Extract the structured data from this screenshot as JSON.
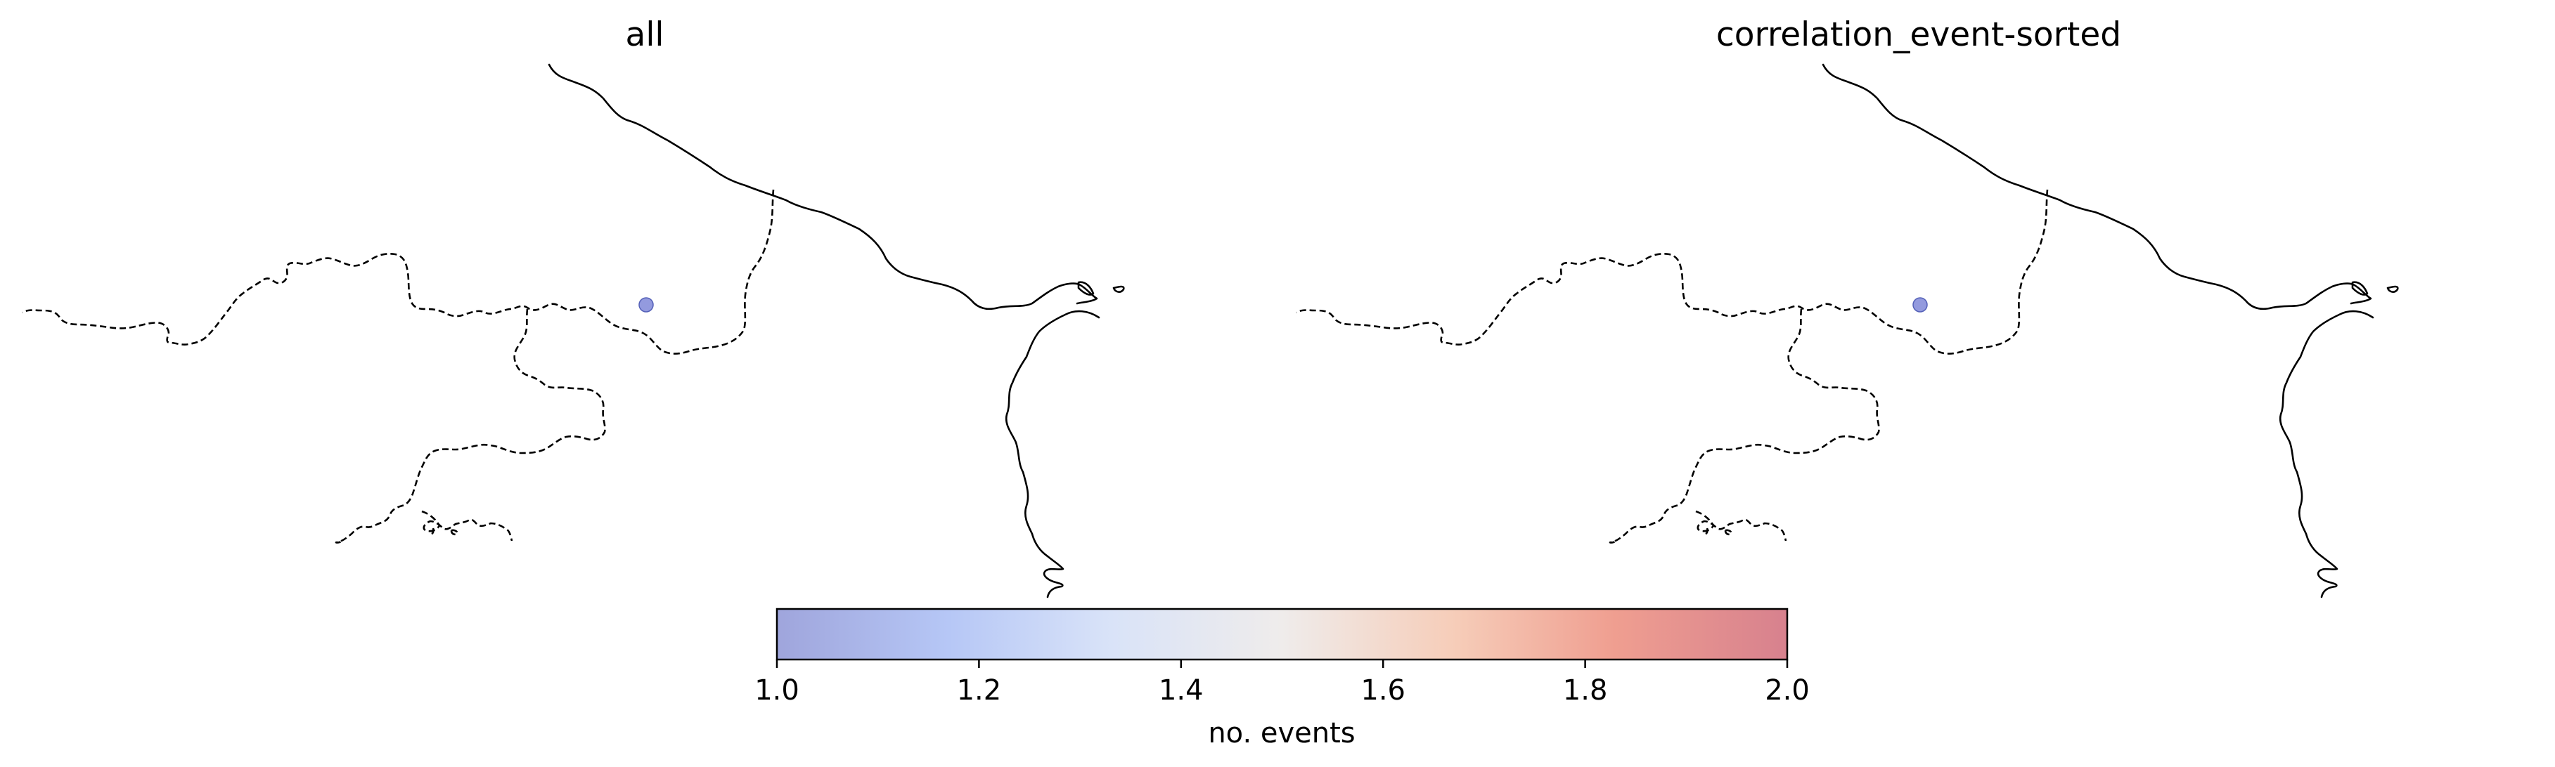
{
  "panels": [
    {
      "title": "all"
    },
    {
      "title": "correlation_event-sorted"
    }
  ],
  "colorbar": {
    "label": "no. events",
    "min": 1.0,
    "max": 2.0,
    "ticks": [
      "1.0",
      "1.2",
      "1.4",
      "1.6",
      "1.8",
      "2.0"
    ],
    "colormap": "coolwarm",
    "colors": [
      "#9fa5dc",
      "#b6c7f6",
      "#d9e3f8",
      "#efeceb",
      "#f6cdb9",
      "#ef9e90",
      "#d7818e"
    ]
  },
  "chart_data": {
    "type": "scatter",
    "panels": [
      {
        "title": "all",
        "points": [
          {
            "value": 1.0
          }
        ]
      },
      {
        "title": "correlation_event-sorted",
        "points": [
          {
            "value": 1.0
          }
        ]
      }
    ],
    "colorbar_label": "no. events",
    "colorbar_range": [
      1.0,
      2.0
    ],
    "colorbar_ticks": [
      1.0,
      1.2,
      1.4,
      1.6,
      1.8,
      2.0
    ]
  },
  "marker_color": "#8088d8"
}
